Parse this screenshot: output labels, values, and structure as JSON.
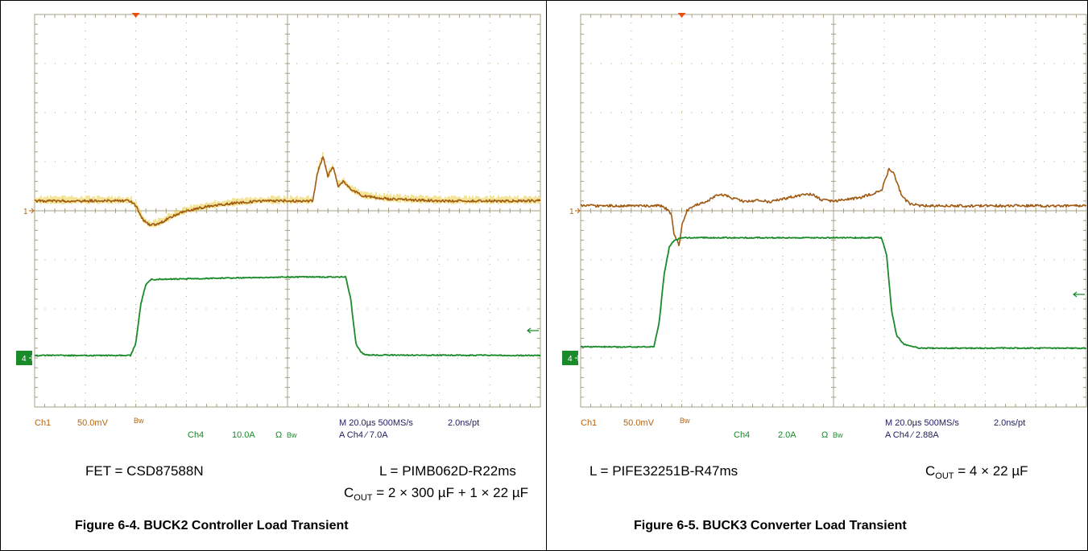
{
  "chart_data": [
    {
      "type": "line",
      "title": "Figure 6-4. BUCK2 Controller Load Transient",
      "xlabel": "",
      "ylabel": "",
      "grid": true,
      "xlim": [
        -100,
        100
      ],
      "x_unit": "µs",
      "scope_readout": {
        "ch1": "Ch1",
        "ch1_scale": "50.0mV",
        "bw1": "Bw",
        "ch4": "Ch4",
        "ch4_scale": "10.0A",
        "ohm": "Ω",
        "bw4": "Bw",
        "timebase": "M 20.0µs 500MS/s",
        "resolution": "2.0ns/pt",
        "trigger": "A  Ch4  ⁄  7.0A"
      },
      "markers": {
        "ch1_marker": "1",
        "ch4_marker": "4"
      },
      "series": [
        {
          "channel": "Ch1",
          "color": "#a05a14",
          "noise_color": "#e8c830",
          "scale_per_div": 50,
          "unit": "mV",
          "baseline_div": 0.2,
          "x": [
            -100,
            -62,
            -60,
            -57,
            -54,
            -50,
            -45,
            -40,
            -30,
            -20,
            -10,
            0,
            10,
            12,
            14,
            16,
            18,
            20,
            22,
            25,
            30,
            40,
            60,
            100
          ],
          "y": [
            0,
            0,
            -5,
            -20,
            -25,
            -22,
            -15,
            -10,
            -5,
            -2,
            0,
            0,
            0,
            30,
            45,
            25,
            35,
            15,
            20,
            12,
            5,
            2,
            0,
            0
          ]
        },
        {
          "channel": "Ch4",
          "color": "#1a8a2a",
          "scale_per_div": 10,
          "unit": "A",
          "baseline_div": -3.0,
          "x": [
            -100,
            -62,
            -60,
            -58,
            -56,
            -54,
            0,
            23,
            25,
            27,
            29,
            31,
            100
          ],
          "y": [
            0.5,
            0.5,
            3,
            11,
            15,
            16,
            16.5,
            16.5,
            12,
            3,
            1.2,
            0.6,
            0.5
          ]
        }
      ]
    },
    {
      "type": "line",
      "title": "Figure 6-5. BUCK3 Converter Load Transient",
      "xlabel": "",
      "ylabel": "",
      "grid": true,
      "xlim": [
        -100,
        100
      ],
      "x_unit": "µs",
      "scope_readout": {
        "ch1": "Ch1",
        "ch1_scale": "50.0mV",
        "bw1": "Bw",
        "ch4": "Ch4",
        "ch4_scale": "2.0A",
        "ohm": "Ω",
        "bw4": "Bw",
        "timebase": "M 20.0µs 500MS/s",
        "resolution": "2.0ns/pt",
        "trigger": "A  Ch4  ⁄  2.88A"
      },
      "markers": {
        "ch1_marker": "1",
        "ch4_marker": "4"
      },
      "series": [
        {
          "channel": "Ch1",
          "color": "#a05a14",
          "noise_color": null,
          "scale_per_div": 50,
          "unit": "mV",
          "baseline_div": 0.1,
          "x": [
            -100,
            -68,
            -65,
            -64,
            -63,
            -61,
            -60,
            -58,
            -55,
            -50,
            -45,
            -40,
            -35,
            -30,
            -25,
            -15,
            -8,
            -5,
            0,
            10,
            15,
            19,
            22,
            24,
            27,
            30,
            35,
            100
          ],
          "y": [
            0,
            0,
            -5,
            -10,
            -30,
            -40,
            -20,
            -5,
            0,
            5,
            12,
            8,
            4,
            6,
            4,
            10,
            12,
            6,
            5,
            8,
            12,
            16,
            38,
            32,
            10,
            2,
            0,
            0
          ]
        },
        {
          "channel": "Ch4",
          "color": "#1a8a2a",
          "scale_per_div": 2,
          "unit": "A",
          "baseline_div": -2.8,
          "x": [
            -100,
            -71,
            -69,
            -67,
            -65,
            -63,
            -60,
            0,
            19,
            21,
            23,
            25,
            28,
            34,
            100
          ],
          "y": [
            0.05,
            0.05,
            1,
            3,
            4.1,
            4.4,
            4.5,
            4.5,
            4.5,
            3.8,
            1.5,
            0.5,
            0.15,
            0,
            0
          ]
        }
      ]
    }
  ],
  "captions": {
    "left": {
      "line1_left": "FET = CSD87588N",
      "line1_right": "L = PIMB062D-R22ms",
      "cout_prefix": "C",
      "cout_sub": "OUT",
      "cout_value": " = 2 × 300 µF + 1 × 22 µF",
      "figure_title": "Figure 6-4. BUCK2 Controller Load Transient"
    },
    "right": {
      "line1_left": "L = PIFE32251B-R47ms",
      "cout_prefix": "C",
      "cout_sub": "OUT",
      "cout_value": " = 4 × 22 µF",
      "figure_title": "Figure 6-5. BUCK3 Converter Load Transient"
    }
  },
  "colors": {
    "grid_line": "#a6a080",
    "grid_dot": "#b0a878",
    "ch1_text": "#b86410",
    "ch4_text": "#1a8a2a",
    "readout_text": "#202060",
    "trigger_marker": "#e85010",
    "ch4_label_bg": "#1a8a2a"
  }
}
